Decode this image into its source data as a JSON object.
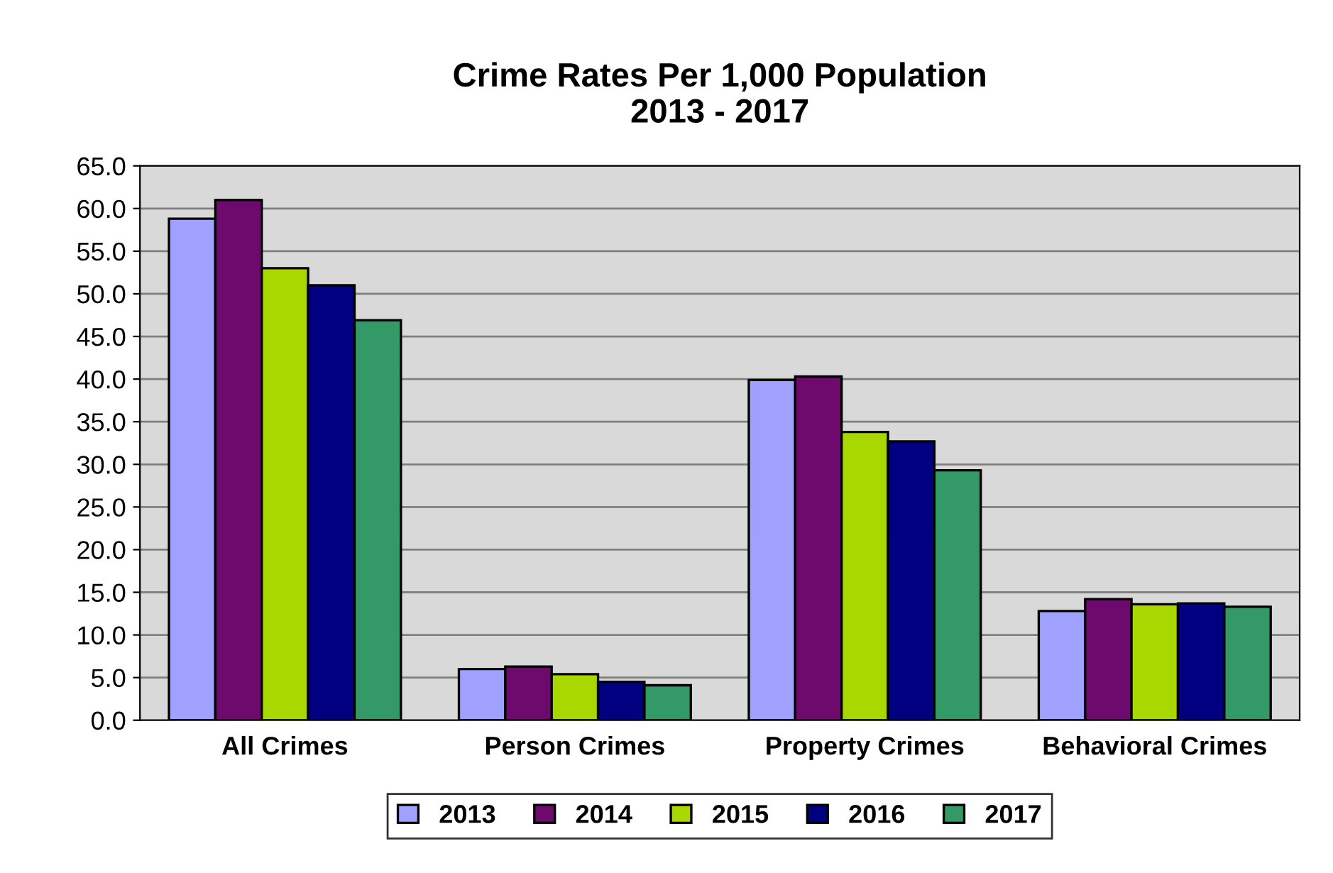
{
  "chart_data": {
    "type": "bar",
    "title": "Crime Rates Per 1,000 Population\n2013 - 2017",
    "categories": [
      "All Crimes",
      "Person Crimes",
      "Property Crimes",
      "Behavioral Crimes"
    ],
    "series": [
      {
        "name": "2013",
        "color": "#a0a0ff",
        "values": [
          58.8,
          6.0,
          39.9,
          12.8
        ]
      },
      {
        "name": "2014",
        "color": "#6e0a6e",
        "values": [
          61.0,
          6.3,
          40.3,
          14.2
        ]
      },
      {
        "name": "2015",
        "color": "#a8d800",
        "values": [
          53.0,
          5.4,
          33.8,
          13.6
        ]
      },
      {
        "name": "2016",
        "color": "#000080",
        "values": [
          51.0,
          4.5,
          32.7,
          13.7
        ]
      },
      {
        "name": "2017",
        "color": "#339966",
        "values": [
          46.9,
          4.1,
          29.3,
          13.3
        ]
      }
    ],
    "ylim": [
      0,
      65
    ],
    "yticks": [
      {
        "value": 0,
        "label": "0.0"
      },
      {
        "value": 5,
        "label": "5.0"
      },
      {
        "value": 10,
        "label": "10.0"
      },
      {
        "value": 15,
        "label": "15.0"
      },
      {
        "value": 20,
        "label": "20.0"
      },
      {
        "value": 25,
        "label": "25.0"
      },
      {
        "value": 30,
        "label": "30.0"
      },
      {
        "value": 35,
        "label": "35.0"
      },
      {
        "value": 40,
        "label": "40.0"
      },
      {
        "value": 45,
        "label": "45.0"
      },
      {
        "value": 50,
        "label": "50.0"
      },
      {
        "value": 55,
        "label": "55.0"
      },
      {
        "value": 60,
        "label": "60.0"
      },
      {
        "value": 65,
        "label": "65.0"
      }
    ],
    "grid": "y",
    "legend": "bottom"
  }
}
